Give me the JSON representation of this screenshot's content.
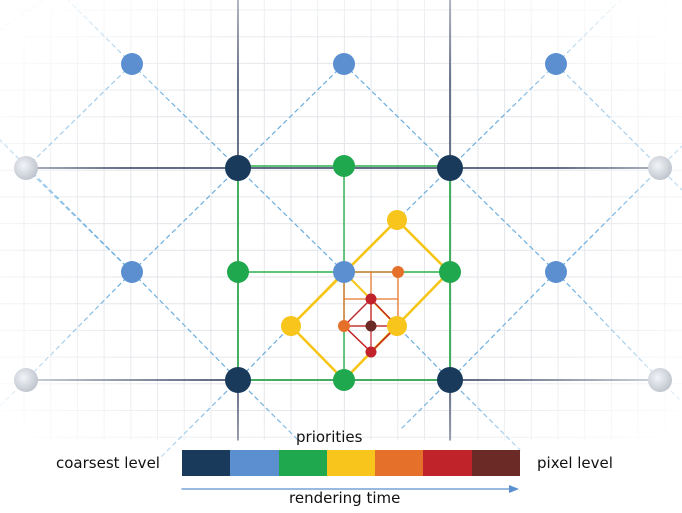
{
  "labels": {
    "priorities": "priorities",
    "coarsest": "coarsest level",
    "pixel": "pixel level",
    "time": "rendering time"
  },
  "priority_colors": [
    "#1a3a5c",
    "#5b8fcf",
    "#1fa84d",
    "#f7c51b",
    "#e5702a",
    "#c0232a",
    "#6b2a26"
  ],
  "line_colors": {
    "grid_fine": "#e4e6ea",
    "grid_main": "#2f3c5c",
    "diag": "#6aaee0",
    "green": "#2bb14c",
    "yellow": "#f5c518",
    "orange": "#e8792f",
    "red": "#c0232a"
  },
  "arrow_color": "#5b8fcf",
  "gray_node": "#c9ced6"
}
